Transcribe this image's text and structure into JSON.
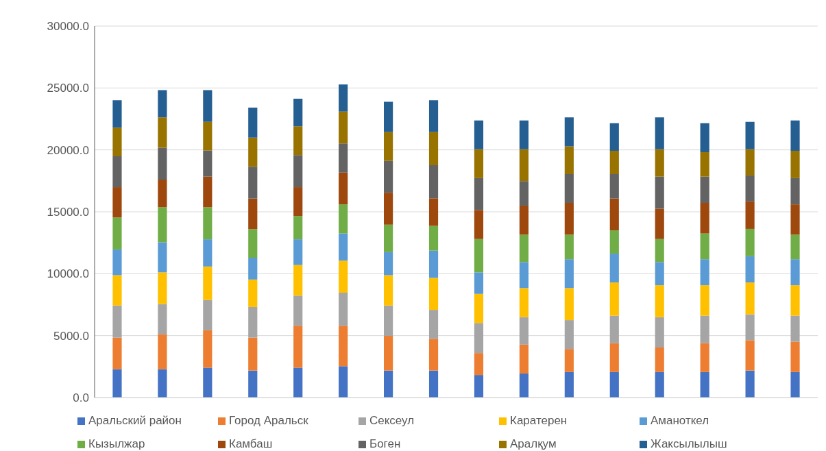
{
  "chart_data": {
    "type": "bar",
    "stacked": true,
    "categories": [
      null,
      null,
      null,
      null,
      null,
      null,
      null,
      null,
      null,
      null,
      null,
      null,
      null,
      null,
      null,
      null
    ],
    "series": [
      {
        "name": "Аральский район",
        "color": "#4472c4",
        "values": [
          2290,
          2290,
          2410,
          2180,
          2410,
          2530,
          2180,
          2180,
          1820,
          1940,
          2060,
          2060,
          2060,
          2060,
          2180,
          2060
        ]
      },
      {
        "name": "Город Аральск",
        "color": "#ed7d31",
        "values": [
          2550,
          2810,
          3020,
          2660,
          3390,
          3270,
          2800,
          2560,
          1770,
          2330,
          1860,
          2330,
          1980,
          2330,
          2450,
          2450
        ]
      },
      {
        "name": "Сексеул",
        "color": "#a5a5a5",
        "values": [
          2590,
          2450,
          2450,
          2470,
          2430,
          2670,
          2450,
          2340,
          2430,
          2220,
          2330,
          2220,
          2450,
          2220,
          2090,
          2100
        ]
      },
      {
        "name": "Каратерен",
        "color": "#ffc000",
        "values": [
          2450,
          2560,
          2700,
          2220,
          2470,
          2580,
          2450,
          2580,
          2350,
          2350,
          2590,
          2680,
          2580,
          2460,
          2570,
          2460
        ]
      },
      {
        "name": "Аманоткел",
        "color": "#5b9bd5",
        "values": [
          2080,
          2430,
          2200,
          1760,
          2080,
          2200,
          1860,
          2200,
          1740,
          2100,
          2330,
          2330,
          1870,
          2100,
          2120,
          2100
        ]
      },
      {
        "name": "Кызылжар",
        "color": "#70ad47",
        "values": [
          2580,
          2830,
          2590,
          2310,
          1880,
          2350,
          2220,
          2000,
          2690,
          2210,
          1980,
          1880,
          1860,
          2080,
          2210,
          1980
        ]
      },
      {
        "name": "Камбаш",
        "color": "#9e480e",
        "values": [
          2450,
          2230,
          2470,
          2470,
          2330,
          2570,
          2580,
          2230,
          2350,
          2350,
          2570,
          2570,
          2450,
          2470,
          2220,
          2450
        ]
      },
      {
        "name": "Боген",
        "color": "#636363",
        "values": [
          2490,
          2570,
          2110,
          2570,
          2590,
          2350,
          2570,
          2670,
          2570,
          1980,
          2330,
          1980,
          2590,
          2120,
          2090,
          2120
        ]
      },
      {
        "name": "Аралқум",
        "color": "#997300",
        "values": [
          2320,
          2450,
          2320,
          2350,
          2330,
          2570,
          2330,
          2680,
          2330,
          2570,
          2240,
          1880,
          2210,
          1980,
          2120,
          2210
        ]
      },
      {
        "name": "Жаксылылыш",
        "color": "#255e91",
        "values": [
          2210,
          2210,
          2560,
          2430,
          2220,
          2190,
          2450,
          2570,
          2330,
          2330,
          2330,
          2220,
          2570,
          2330,
          2220,
          2450
        ]
      }
    ],
    "ylim": [
      0,
      30000
    ],
    "yticks": [
      {
        "value": 0,
        "label": "0.0"
      },
      {
        "value": 5000,
        "label": "5000.0"
      },
      {
        "value": 10000,
        "label": "10000.0"
      },
      {
        "value": 15000,
        "label": "15000.0"
      },
      {
        "value": 20000,
        "label": "20000.0"
      },
      {
        "value": 25000,
        "label": "25000.0"
      },
      {
        "value": 30000,
        "label": "30000.0"
      }
    ],
    "grid": "y",
    "legend": "bottom"
  }
}
